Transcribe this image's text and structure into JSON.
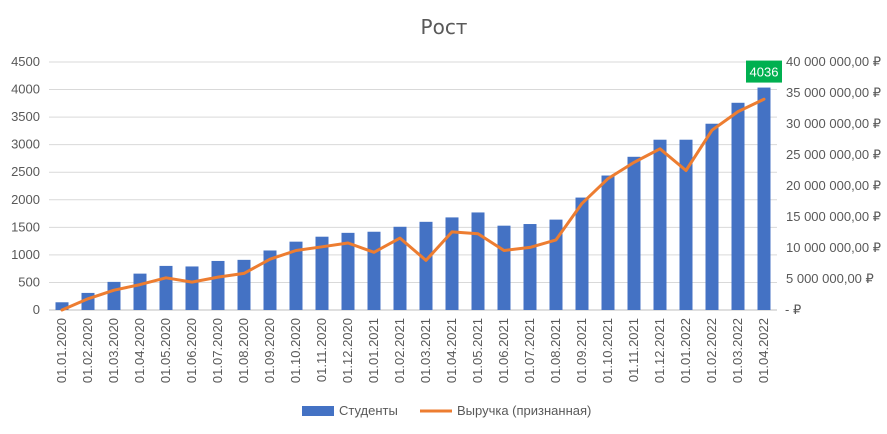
{
  "chart_data": {
    "type": "bar",
    "title": "Рост",
    "categories": [
      "01.01.2020",
      "01.02.2020",
      "01.03.2020",
      "01.04.2020",
      "01.05.2020",
      "01.06.2020",
      "01.07.2020",
      "01.08.2020",
      "01.09.2020",
      "01.10.2020",
      "01.11.2020",
      "01.12.2020",
      "01.01.2021",
      "01.02.2021",
      "01.03.2021",
      "01.04.2021",
      "01.05.2021",
      "01.06.2021",
      "01.07.2021",
      "01.08.2021",
      "01.09.2021",
      "01.10.2021",
      "01.11.2021",
      "01.12.2021",
      "01.01.2022",
      "01.02.2022",
      "01.03.2022",
      "01.04.2022"
    ],
    "series": [
      {
        "name": "Студенты",
        "type": "bar",
        "axis": "left",
        "color": "#4472C4",
        "values": [
          140,
          310,
          510,
          660,
          800,
          790,
          890,
          910,
          1080,
          1240,
          1330,
          1400,
          1420,
          1510,
          1600,
          1680,
          1770,
          1530,
          1560,
          1640,
          2040,
          2440,
          2780,
          3090,
          3090,
          3380,
          3760,
          4036
        ]
      },
      {
        "name": "Выручка (признанная)",
        "type": "line",
        "axis": "right",
        "color": "#ED7D31",
        "values": [
          0,
          1800000,
          3200000,
          4100000,
          5200000,
          4500000,
          5300000,
          5900000,
          8200000,
          9600000,
          10200000,
          10800000,
          9300000,
          11600000,
          8000000,
          12600000,
          12300000,
          9600000,
          10100000,
          11300000,
          17200000,
          21200000,
          23800000,
          26000000,
          22500000,
          29000000,
          32000000,
          34000000
        ]
      }
    ],
    "y_left": {
      "min": 0,
      "max": 4500,
      "step": 500,
      "ticks": [
        "0",
        "500",
        "1000",
        "1500",
        "2000",
        "2500",
        "3000",
        "3500",
        "4000",
        "4500"
      ]
    },
    "y_right": {
      "min": 0,
      "max": 40000000,
      "step": 5000000,
      "ticks": [
        "-  ₽",
        "5 000 000,00 ₽",
        "10 000 000,00 ₽",
        "15 000 000,00 ₽",
        "20 000 000,00 ₽",
        "25 000 000,00 ₽",
        "30 000 000,00 ₽",
        "35 000 000,00 ₽",
        "40 000 000,00 ₽"
      ]
    },
    "grid": true,
    "legend_position": "bottom",
    "callout": {
      "text": "4036",
      "color": "#00B050",
      "category": "01.04.2022"
    }
  }
}
